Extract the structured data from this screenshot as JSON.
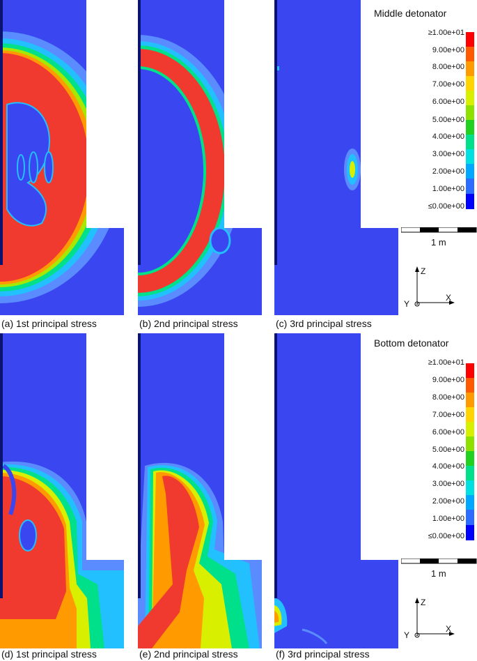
{
  "rows": [
    {
      "legend_title": "Middle detonator",
      "captions": [
        "(a) 1st principal stress",
        "(b) 2nd principal stress",
        "(c) 3rd principal stress"
      ]
    },
    {
      "legend_title": "Bottom detonator",
      "captions": [
        "(d) 1st principal stress",
        "(e) 2nd principal stress",
        "(f) 3rd principal stress"
      ]
    }
  ],
  "legend": {
    "ticks": [
      "≥1.00e+01",
      "9.00e+00",
      "8.00e+00",
      "7.00e+00",
      "6.00e+00",
      "5.00e+00",
      "4.00e+00",
      "3.00e+00",
      "2.00e+00",
      "1.00e+00",
      "≤0.00e+00"
    ],
    "colors": [
      "#ff0000",
      "#ff5a00",
      "#ff9a00",
      "#ffd400",
      "#d8f000",
      "#8ee000",
      "#22d020",
      "#00e08a",
      "#00e0e0",
      "#00a8ff",
      "#2c6cff",
      "#0000ff"
    ]
  },
  "scale_label": "1 m",
  "axes": {
    "z": "Z",
    "x": "X",
    "y": "Y"
  },
  "colors": {
    "background_field": "#3a47f0",
    "high": "#f03a30",
    "edge_dark": "#0a1470"
  }
}
